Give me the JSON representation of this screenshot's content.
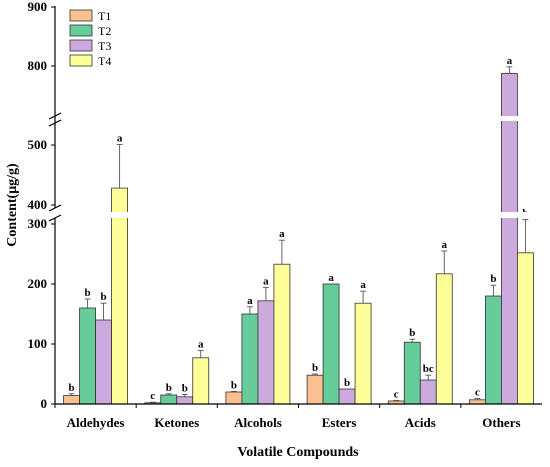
{
  "chart_data": {
    "type": "bar",
    "xlabel": "Volatile Compounds",
    "ylabel": "Content(μg/g)",
    "categories": [
      "Aldehydes",
      "Ketones",
      "Alcohols",
      "Esters",
      "Acids",
      "Others"
    ],
    "series": [
      {
        "name": "T1",
        "color": "#FAC090",
        "values": [
          14,
          2,
          20,
          48,
          5,
          7
        ],
        "errors": [
          3,
          1,
          1,
          2,
          1,
          2
        ],
        "letters": [
          "b",
          "c",
          "b",
          "b",
          "c",
          "c"
        ]
      },
      {
        "name": "T2",
        "color": "#66CC99",
        "values": [
          160,
          15,
          150,
          200,
          103,
          180
        ],
        "errors": [
          15,
          2,
          12,
          0,
          5,
          18
        ],
        "letters": [
          "b",
          "b",
          "a",
          "a",
          "b",
          "b"
        ]
      },
      {
        "name": "T3",
        "color": "#CCAADD",
        "values": [
          140,
          12,
          172,
          25,
          40,
          770
        ],
        "errors": [
          28,
          4,
          22,
          0,
          8,
          25
        ],
        "letters": [
          "b",
          "b",
          "a",
          "b",
          "bc",
          "a"
        ]
      },
      {
        "name": "T4",
        "color": "#FFFF99",
        "values": [
          427,
          77,
          233,
          168,
          217,
          252
        ],
        "errors": [
          75,
          12,
          40,
          20,
          38,
          70
        ],
        "letters": [
          "a",
          "a",
          "a",
          "a",
          "a",
          "b"
        ]
      }
    ],
    "y_lower_ticks": [
      0,
      100,
      200,
      300
    ],
    "y_upper_ticks": [
      400,
      500,
      800,
      900
    ],
    "axis_break": [
      [
        300,
        400
      ],
      [
        500,
        800
      ]
    ],
    "legend_position": "top-left",
    "grid": false
  }
}
